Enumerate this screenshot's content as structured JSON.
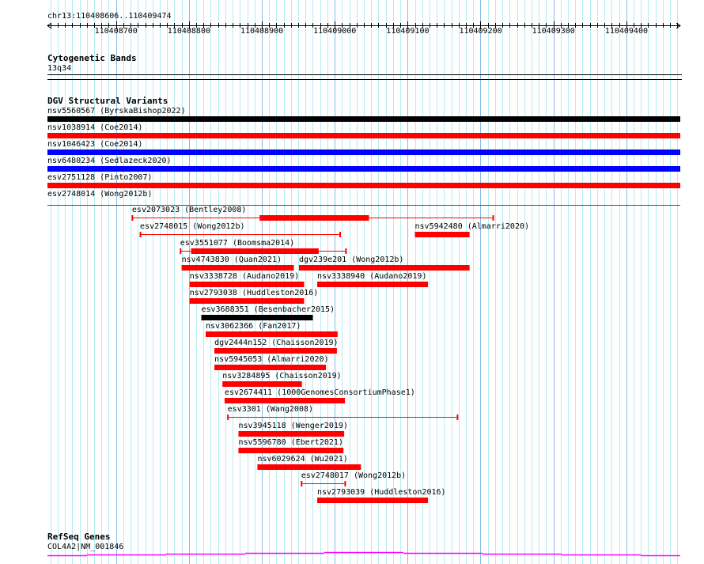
{
  "view": {
    "location": "chr13:110408606..110409474",
    "start": 110408606,
    "end": 110409474,
    "tick_labels": [
      "110408700",
      "110408800",
      "110408900",
      "110409000",
      "110409100",
      "110409200",
      "110409300",
      "110409400"
    ]
  },
  "colors": {
    "grid_minor": "#b4ecf0",
    "grid_major": "#86bde8",
    "red": "#ff0000",
    "blue": "#0000ff",
    "black": "#000000",
    "gene": "#ff00ff"
  },
  "cytoband": {
    "title": "Cytogenetic Bands",
    "band": "13q34"
  },
  "dgv": {
    "title": "DGV Structural Variants",
    "full": [
      {
        "label": "nsv5560567 (ByrskaBishop2022)",
        "color": "#000000"
      },
      {
        "label": "nsv1038914 (Coe2014)",
        "color": "#ff0000"
      },
      {
        "label": "nsv1046423 (Coe2014)",
        "color": "#0000ff"
      },
      {
        "label": "nsv6480234 (Sedlazeck2020)",
        "color": "#0000ff"
      },
      {
        "label": "esv2751128 (Pinto2007)",
        "color": "#ff0000"
      },
      {
        "label": "esv2748014 (Wong2012b)",
        "color": "#ff0000",
        "thin": true
      }
    ],
    "features": [
      {
        "label": "esv2073023 (Bentley2008)",
        "start": 110408722,
        "end": 110409218,
        "thick_start": 110408897,
        "thick_end": 110409047,
        "color": "#ff0000"
      },
      {
        "label": "esv2748015 (Wong2012b)",
        "start": 110408733,
        "end": 110409008,
        "color": "#ff0000",
        "thin": true
      },
      {
        "label": "nsv5942480 (Almarri2020)",
        "start": 110409110,
        "end": 110409185,
        "color": "#ff0000"
      },
      {
        "label": "esv3551077 (Boomsma2014)",
        "start": 110408788,
        "end": 110409016,
        "thick_start": 110408803,
        "thick_end": 110408978,
        "color": "#ff0000"
      },
      {
        "label": "nsv4743830 (Quan2021)",
        "start": 110408790,
        "end": 110408944,
        "color": "#ff0000"
      },
      {
        "label": "dgv239e201 (Wong2012b)",
        "start": 110408951,
        "end": 110409185,
        "color": "#ff0000"
      },
      {
        "label": "nsv3338728 (Audano2019)",
        "start": 110408801,
        "end": 110408958,
        "color": "#ff0000"
      },
      {
        "label": "nsv3338940 (Audano2019)",
        "start": 110408976,
        "end": 110409128,
        "color": "#ff0000"
      },
      {
        "label": "nsv2793038 (Huddleston2016)",
        "start": 110408801,
        "end": 110408958,
        "color": "#ff0000"
      },
      {
        "label": "esv3688351 (Besenbacher2015)",
        "start": 110408817,
        "end": 110408970,
        "color": "#000000"
      },
      {
        "label": "nsv3062366 (Fan2017)",
        "start": 110408823,
        "end": 110409004,
        "color": "#ff0000"
      },
      {
        "label": "dgv2444n152 (Chaisson2019)",
        "start": 110408835,
        "end": 110409003,
        "color": "#ff0000"
      },
      {
        "label": "nsv5945053 (Almarri2020)",
        "start": 110408835,
        "end": 110408988,
        "color": "#ff0000"
      },
      {
        "label": "nsv3284895 (Chaisson2019)",
        "start": 110408846,
        "end": 110408955,
        "color": "#ff0000"
      },
      {
        "label": "esv2674411 (1000GenomesConsortiumPhase1)",
        "start": 110408849,
        "end": 110409014,
        "color": "#ff0000"
      },
      {
        "label": "esv3301 (Wang2008)",
        "start": 110408853,
        "end": 110409169,
        "color": "#ff0000",
        "thin": true
      },
      {
        "label": "nsv3945118 (Wenger2019)",
        "start": 110408868,
        "end": 110409013,
        "color": "#ff0000"
      },
      {
        "label": "nsv5596780 (Ebert2021)",
        "start": 110408868,
        "end": 110409012,
        "color": "#ff0000"
      },
      {
        "label": "nsv6029624 (Wu2021)",
        "start": 110408894,
        "end": 110409036,
        "color": "#ff0000"
      },
      {
        "label": "esv2748017 (Wong2012b)",
        "start": 110408954,
        "end": 110409015,
        "color": "#ff0000",
        "thin": true
      },
      {
        "label": "nsv2793039 (Huddleston2016)",
        "start": 110408976,
        "end": 110409128,
        "color": "#ff0000"
      }
    ]
  },
  "refseq": {
    "title": "RefSeq Genes",
    "gene": "COL4A2|NM_001846"
  }
}
